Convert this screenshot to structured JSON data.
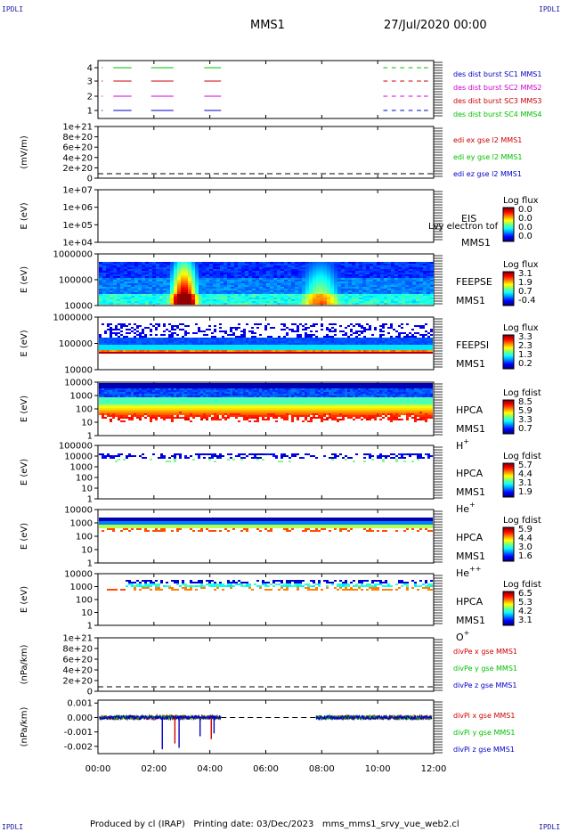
{
  "header": {
    "corner_left": "IPDLI",
    "corner_right": "IPDLI",
    "mission": "MMS1",
    "date": "27/Jul/2020 00:00"
  },
  "footer": {
    "corner_left": "IPDLI",
    "corner_right": "IPDLI",
    "text": "Produced by cl (IRAP)   Printing date: 03/Dec/2023   mms_mms1_srvy_vue_web2.cl"
  },
  "colors": {
    "mms1": "#0000c8",
    "mms2": "#d000d0",
    "mms3": "#d00000",
    "mms4": "#00c000",
    "x_comp": "#d00000",
    "y_comp": "#00c000",
    "z_comp": "#0000c8"
  },
  "chart_data": [
    {
      "type": "timeline",
      "ylabel": "",
      "yticks": [
        "4",
        "3",
        "2",
        "1"
      ],
      "legend": [
        "des dist burst SC1 MMS1",
        "des dist burst SC2 MMS2",
        "des dist burst SC3 MMS3",
        "des dist burst SC4 MMS4"
      ],
      "series": [
        {
          "sc": 4,
          "color_key": "mms4",
          "segments_h": [
            [
              0.13,
              0.17
            ],
            [
              0.55,
              1.2
            ],
            [
              1.9,
              2.7
            ],
            [
              3.8,
              4.4
            ],
            [
              10.2,
              10.35
            ],
            [
              10.5,
              10.65
            ],
            [
              10.8,
              10.95
            ],
            [
              11.1,
              11.25
            ],
            [
              11.4,
              11.55
            ],
            [
              11.65,
              11.8
            ]
          ]
        },
        {
          "sc": 3,
          "color_key": "mms3",
          "segments_h": [
            [
              0.13,
              0.17
            ],
            [
              0.55,
              1.2
            ],
            [
              1.9,
              2.7
            ],
            [
              3.8,
              4.4
            ],
            [
              10.2,
              10.35
            ],
            [
              10.5,
              10.65
            ],
            [
              10.8,
              10.95
            ],
            [
              11.1,
              11.25
            ],
            [
              11.4,
              11.55
            ],
            [
              11.65,
              11.8
            ]
          ]
        },
        {
          "sc": 2,
          "color_key": "mms2",
          "segments_h": [
            [
              0.13,
              0.17
            ],
            [
              0.55,
              1.2
            ],
            [
              1.9,
              2.7
            ],
            [
              3.8,
              4.4
            ],
            [
              10.2,
              10.35
            ],
            [
              10.5,
              10.65
            ],
            [
              10.8,
              10.95
            ],
            [
              11.1,
              11.25
            ],
            [
              11.4,
              11.55
            ],
            [
              11.65,
              11.8
            ]
          ]
        },
        {
          "sc": 1,
          "color_key": "mms1",
          "segments_h": [
            [
              0.13,
              0.17
            ],
            [
              0.55,
              1.2
            ],
            [
              1.9,
              2.7
            ],
            [
              3.8,
              4.4
            ],
            [
              10.2,
              10.35
            ],
            [
              10.5,
              10.65
            ],
            [
              10.8,
              10.95
            ],
            [
              11.1,
              11.25
            ],
            [
              11.4,
              11.55
            ],
            [
              11.65,
              11.8
            ]
          ]
        }
      ]
    },
    {
      "type": "line",
      "ylabel": "(mV/m)",
      "yticks": [
        "1e+21",
        "8e+20",
        "6e+20",
        "4e+20",
        "2e+20",
        "0"
      ],
      "legend": [
        "edi ex gse l2 MMS1",
        "edi ey gse l2 MMS1",
        "edi ez gse l2 MMS1"
      ],
      "legend_color_keys": [
        "x_comp",
        "y_comp",
        "z_comp"
      ],
      "values": "zero (dashed)"
    },
    {
      "type": "heatmap",
      "ylabel": "E (eV)",
      "yticks": [
        "1e+07",
        "1e+06",
        "1e+05",
        "1e+04"
      ],
      "labels": [
        "EIS",
        "MMS1"
      ],
      "overlay_text": "Lvy electron tof",
      "colorbar_title": "Log flux",
      "colorbar_ticks": [
        "0.0",
        "0.0",
        "0.0",
        "0.0"
      ],
      "values": "empty"
    },
    {
      "type": "heatmap",
      "ylabel": "E (eV)",
      "yticks": [
        "1000000",
        "100000",
        "10000"
      ],
      "labels": [
        "FEEPSE",
        "MMS1"
      ],
      "colorbar_title": "Log flux",
      "colorbar_ticks": [
        "3.1",
        "1.9",
        "0.7",
        "-0.4"
      ],
      "features": [
        {
          "center_h": 3.0,
          "width_h": 0.5,
          "peak": 1.0
        },
        {
          "center_h": 7.9,
          "width_h": 0.8,
          "peak": 0.55
        }
      ]
    },
    {
      "type": "heatmap",
      "ylabel": "E (eV)",
      "yticks": [
        "1000000",
        "100000",
        "10000"
      ],
      "labels": [
        "FEEPSI",
        "MMS1"
      ],
      "colorbar_title": "Log flux",
      "colorbar_ticks": [
        "3.3",
        "2.3",
        "1.3",
        "0.2"
      ]
    },
    {
      "type": "heatmap",
      "ylabel": "E (eV)",
      "yticks": [
        "10000",
        "1000",
        "100",
        "10",
        "1"
      ],
      "labels": [
        "HPCA",
        "MMS1",
        "H"
      ],
      "species_sup": "+",
      "colorbar_title": "Log fdist",
      "colorbar_ticks": [
        "8.5",
        "5.9",
        "3.3",
        "0.7"
      ]
    },
    {
      "type": "heatmap",
      "ylabel": "E (eV)",
      "yticks": [
        "100000",
        "10000",
        "1000",
        "100",
        "10",
        "1"
      ],
      "labels": [
        "HPCA",
        "MMS1",
        "He"
      ],
      "species_sup": "+",
      "colorbar_title": "Log fdist",
      "colorbar_ticks": [
        "5.7",
        "4.4",
        "3.1",
        "1.9"
      ]
    },
    {
      "type": "heatmap",
      "ylabel": "E (eV)",
      "yticks": [
        "10000",
        "1000",
        "100",
        "10",
        "1"
      ],
      "labels": [
        "HPCA",
        "MMS1",
        "He"
      ],
      "species_sup": "++",
      "colorbar_title": "Log fdist",
      "colorbar_ticks": [
        "5.9",
        "4.4",
        "3.0",
        "1.6"
      ]
    },
    {
      "type": "heatmap",
      "ylabel": "E (eV)",
      "yticks": [
        "10000",
        "1000",
        "100",
        "10",
        "1"
      ],
      "labels": [
        "HPCA",
        "MMS1",
        "O"
      ],
      "species_sup": "+",
      "colorbar_title": "Log fdist",
      "colorbar_ticks": [
        "6.5",
        "5.3",
        "4.2",
        "3.1"
      ]
    },
    {
      "type": "line",
      "ylabel": "(nPa/km)",
      "yticks": [
        "1e+21",
        "8e+20",
        "6e+20",
        "4e+20",
        "2e+20",
        "0"
      ],
      "legend": [
        "divPe x gse MMS1",
        "divPe y gse MMS1",
        "divPe z gse MMS1"
      ],
      "legend_color_keys": [
        "x_comp",
        "y_comp",
        "z_comp"
      ],
      "values": "zero (dashed)"
    },
    {
      "type": "line",
      "ylabel": "(nPa/km)",
      "yticks": [
        "0.001",
        "0.000",
        "-0.001",
        "-0.002"
      ],
      "ylim": [
        -0.0025,
        0.0012
      ],
      "legend": [
        "divPi x gse MMS1",
        "divPi y gse MMS1",
        "divPi z gse MMS1"
      ],
      "legend_color_keys": [
        "x_comp",
        "y_comp",
        "z_comp"
      ],
      "data_gaps_h": [
        [
          4.4,
          7.8
        ]
      ],
      "spikes": [
        {
          "t_h": 2.3,
          "value": -0.0022
        },
        {
          "t_h": 2.75,
          "value": -0.0018
        },
        {
          "t_h": 2.9,
          "value": -0.0021
        },
        {
          "t_h": 3.65,
          "value": -0.0013
        },
        {
          "t_h": 4.05,
          "value": -0.0015
        },
        {
          "t_h": 4.15,
          "value": -0.0011
        }
      ]
    }
  ],
  "xaxis": {
    "ticks": [
      "00:00",
      "02:00",
      "04:00",
      "06:00",
      "08:00",
      "10:00",
      "12:00"
    ],
    "range_h": [
      0,
      12
    ]
  }
}
